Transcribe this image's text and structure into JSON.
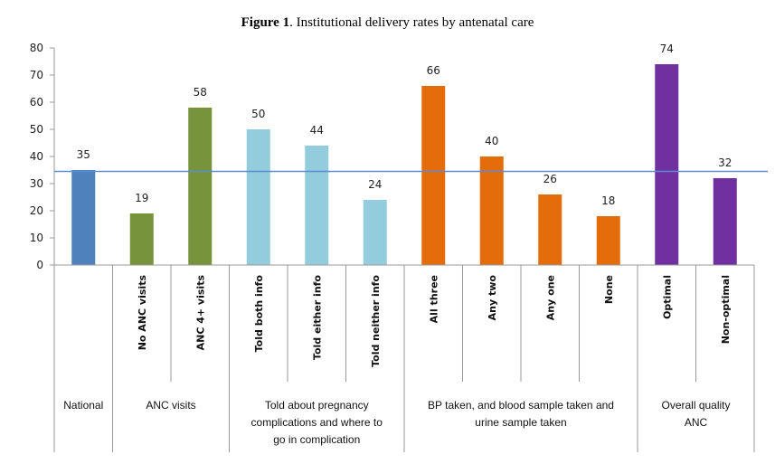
{
  "chart_data": {
    "type": "bar",
    "title_bold": "Figure 1",
    "title_rest": ". Institutional delivery rates by antenatal care",
    "xlabel": "",
    "ylabel": "",
    "ylim": [
      0,
      80
    ],
    "yticks": [
      "0",
      "10",
      "20",
      "30",
      "40",
      "50",
      "60",
      "70",
      "80"
    ],
    "grid": false,
    "reference_line": 34.5,
    "reference_line_color": "#5B8BD0",
    "categories": [
      "",
      "No ANC  visits",
      "ANC 4+ visits",
      "Told both info",
      "Told either info",
      "Told neither info",
      "All three",
      "Any two",
      "Any one",
      "None",
      "Optimal",
      "Non-optimal"
    ],
    "values": [
      35,
      19,
      58,
      50,
      44,
      24,
      66,
      40,
      26,
      18,
      74,
      32
    ],
    "colors": [
      "#4F81BD",
      "#77933C",
      "#77933C",
      "#93CDDD",
      "#93CDDD",
      "#93CDDD",
      "#E46C0A",
      "#E46C0A",
      "#E46C0A",
      "#E46C0A",
      "#7030A0",
      "#7030A0"
    ],
    "groups": [
      {
        "lines": [
          "National"
        ],
        "start": 0,
        "count": 1
      },
      {
        "lines": [
          "ANC visits"
        ],
        "start": 1,
        "count": 2
      },
      {
        "lines": [
          "Told about pregnancy",
          "complications and where to",
          "go in complication"
        ],
        "start": 3,
        "count": 3
      },
      {
        "lines": [
          "BP taken, and blood sample taken and",
          "urine sample taken"
        ],
        "start": 6,
        "count": 4
      },
      {
        "lines": [
          "Overall quality",
          "ANC"
        ],
        "start": 10,
        "count": 2
      }
    ]
  }
}
